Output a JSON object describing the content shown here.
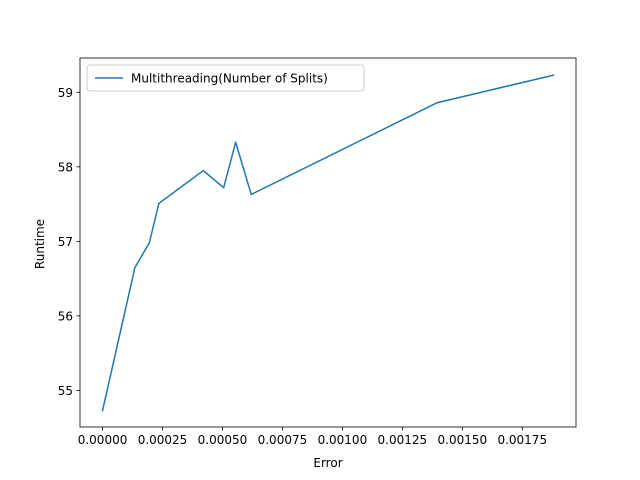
{
  "chart_data": {
    "type": "line",
    "title": "",
    "xlabel": "Error",
    "ylabel": "Runtime",
    "xlim": [
      -9.4e-05,
      0.001974
    ],
    "ylim": [
      54.51,
      59.46
    ],
    "xticks": [
      {
        "value": 0.0,
        "label": "0.00000"
      },
      {
        "value": 0.00025,
        "label": "0.00025"
      },
      {
        "value": 0.0005,
        "label": "0.00050"
      },
      {
        "value": 0.00075,
        "label": "0.00075"
      },
      {
        "value": 0.001,
        "label": "0.00100"
      },
      {
        "value": 0.00125,
        "label": "0.00125"
      },
      {
        "value": 0.0015,
        "label": "0.00150"
      },
      {
        "value": 0.00175,
        "label": "0.00175"
      }
    ],
    "yticks": [
      {
        "value": 55,
        "label": "55"
      },
      {
        "value": 56,
        "label": "56"
      },
      {
        "value": 57,
        "label": "57"
      },
      {
        "value": 58,
        "label": "58"
      },
      {
        "value": 59,
        "label": "59"
      }
    ],
    "grid": false,
    "legend": {
      "position": "top-left"
    },
    "series": [
      {
        "name": "Multithreading(Number of Splits)",
        "color": "#1f77b4",
        "x": [
          0.0,
          0.000135,
          0.000195,
          0.000235,
          0.00042,
          0.000505,
          0.000555,
          0.00062,
          0.001395,
          0.00188
        ],
        "y": [
          54.73,
          56.65,
          56.98,
          57.51,
          57.95,
          57.72,
          58.33,
          57.63,
          58.86,
          59.23
        ]
      }
    ]
  }
}
